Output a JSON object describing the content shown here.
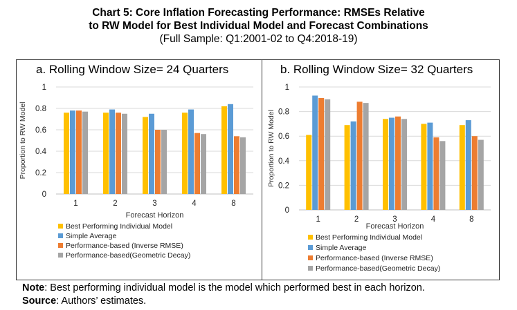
{
  "title": {
    "line1": "Chart 5: Core Inflation Forecasting Performance: RMSEs Relative",
    "line2": "to RW Model for Best Individual Model and Forecast Combinations",
    "line3": "(Full Sample: Q1:2001-02 to Q4:2018-19)"
  },
  "colors": {
    "series": [
      "#FFC000",
      "#5B9BD5",
      "#ED7D31",
      "#A5A5A5"
    ],
    "grid": "#D9D9D9",
    "axis": "#BFBFBF"
  },
  "chart_data": [
    {
      "type": "bar",
      "title": "a.  Rolling Window Size= 24 Quarters",
      "xlabel": "Forecast Horizon",
      "ylabel": "Proportion to RW Model",
      "ylim": [
        0,
        1
      ],
      "yticks": [
        "0",
        "0.2",
        "0.4",
        "0.6",
        "0.8",
        "1"
      ],
      "categories": [
        "1",
        "2",
        "3",
        "4",
        "8"
      ],
      "series": [
        {
          "name": "Best Performing Individual Model",
          "values": [
            0.76,
            0.76,
            0.72,
            0.76,
            0.82
          ]
        },
        {
          "name": "Simple Average",
          "values": [
            0.78,
            0.79,
            0.75,
            0.79,
            0.84
          ]
        },
        {
          "name": "Performance-based (Inverse RMSE)",
          "values": [
            0.78,
            0.76,
            0.6,
            0.57,
            0.54
          ]
        },
        {
          "name": "Performance-based(Geometric Decay)",
          "values": [
            0.77,
            0.75,
            0.6,
            0.56,
            0.53
          ]
        }
      ],
      "legend_position": "bottom"
    },
    {
      "type": "bar",
      "title": "b. Rolling Window Size= 32 Quarters",
      "xlabel": "Forecast Horizon",
      "ylabel": "Proportion to RW Model",
      "ylim": [
        0,
        1
      ],
      "yticks": [
        "0",
        "0.2",
        "0.4",
        "0.6",
        "0.8",
        "1"
      ],
      "categories": [
        "1",
        "2",
        "3",
        "4",
        "8"
      ],
      "series": [
        {
          "name": "Best Performing Individual Model",
          "values": [
            0.61,
            0.69,
            0.74,
            0.7,
            0.69
          ]
        },
        {
          "name": "Simple Average",
          "values": [
            0.93,
            0.72,
            0.75,
            0.71,
            0.73
          ]
        },
        {
          "name": "Performance-based (Inverse RMSE)",
          "values": [
            0.91,
            0.88,
            0.76,
            0.59,
            0.6
          ]
        },
        {
          "name": "Performance-based(Geometric Decay)",
          "values": [
            0.9,
            0.87,
            0.74,
            0.56,
            0.57
          ]
        }
      ],
      "legend_position": "bottom"
    }
  ],
  "note": {
    "label": "Note",
    "text": ": Best performing individual model is the model which performed best in each horizon."
  },
  "source": {
    "label": "Source",
    "text": ": Authors’ estimates."
  }
}
